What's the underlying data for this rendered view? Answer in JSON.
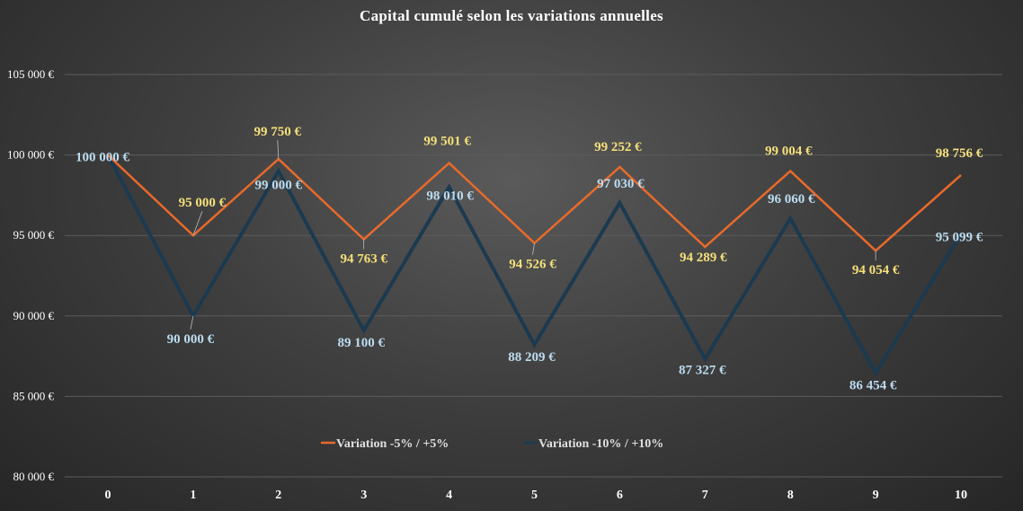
{
  "chart_data": {
    "type": "line",
    "title": "Capital cumulé selon les variations annuelles",
    "xlabel": "",
    "ylabel": "",
    "categories": [
      "0",
      "1",
      "2",
      "3",
      "4",
      "5",
      "6",
      "7",
      "8",
      "9",
      "10"
    ],
    "ylim": [
      80000,
      105000
    ],
    "yticks": [
      80000,
      85000,
      90000,
      95000,
      100000,
      105000
    ],
    "ytick_labels": [
      "80 000 €",
      "85 000 €",
      "90 000 €",
      "95 000 €",
      "100 000 €",
      "105 000 €"
    ],
    "grid": true,
    "legend_position": "bottom",
    "series": [
      {
        "name": "Variation -5% / +5%",
        "color": "#e86a2b",
        "label_color": "#f5e07a",
        "values": [
          100000,
          95000,
          99750,
          94763,
          99501,
          94526,
          99252,
          94289,
          99004,
          94054,
          98756
        ],
        "labels": [
          "",
          "95 000 €",
          "99 750 €",
          "94 763 €",
          "99 501 €",
          "94 526 €",
          "99 252 €",
          "94 289 €",
          "99 004 €",
          "94 054 €",
          "98 756 €"
        ]
      },
      {
        "name": "Variation -10% / +10%",
        "color": "#1c3a4f",
        "label_color": "#bcdcf0",
        "values": [
          100000,
          90000,
          99000,
          89100,
          98010,
          88209,
          97030,
          87327,
          96060,
          86454,
          95099
        ],
        "labels": [
          "100 000 €",
          "90 000 €",
          "99 000 €",
          "89 100 €",
          "98 010 €",
          "88 209 €",
          "97 030 €",
          "87 327 €",
          "96 060 €",
          "86 454 €",
          "95 099 €"
        ]
      }
    ]
  }
}
